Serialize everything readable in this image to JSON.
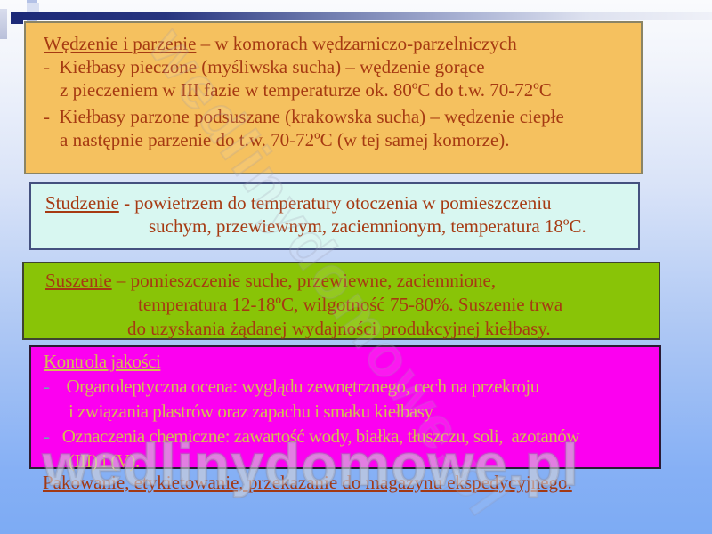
{
  "colors": {
    "background_bottom": "#7dabf4",
    "bar_navy": "#1c2a78",
    "box_smoking_bg": "#f5c15f",
    "box_cooling_bg": "#d8f7f1",
    "box_drying_bg": "#89c407",
    "box_quality_bg": "#fc00f0",
    "text_brick": "#a63a12",
    "text_khaki": "#d2be52"
  },
  "watermark": {
    "text": "wedlinydomowe.pl"
  },
  "boxes": {
    "smoking": {
      "title": "Wędzenie i parzenie",
      "title_suffix": " – w komorach wędzarniczo-parzelniczych",
      "line2": "-  Kiełbasy pieczone (myśliwska sucha) – wędzenie gorące",
      "line3": "z pieczeniem w III fazie w temperaturze ok. 80ºC do t.w. 70-72ºC",
      "line4": "-  Kiełbasy parzone podsuszane (krakowska sucha) – wędzenie ciepłe",
      "line5": "a następnie parzenie do t.w. 70-72ºC (w tej samej komorze)."
    },
    "cooling": {
      "title": "Studzenie",
      "title_suffix": " - powietrzem do temperatury otoczenia w pomieszczeniu",
      "line2": "suchym, przewiewnym, zaciemnionym, temperatura 18ºC."
    },
    "drying": {
      "title": "Suszenie",
      "title_suffix": " – pomieszczenie suche, przewiewne, zaciemnione,",
      "line2": "temperatura 12-18ºC, wilgotność 75-80%. Suszenie trwa",
      "line3": "do uzyskania żądanej wydajności produkcyjnej kiełbasy."
    },
    "quality": {
      "title": "Kontrola jakości",
      "line2": "-    Organoleptyczna ocena: wyglądu zewnętrznego, cech na przekroju",
      "line3": "i związania plastrów oraz zapachu i smaku kiełbasy",
      "line4": "-   Oznaczenia chemiczne: zawartość wody, białka, tłuszczu, soli,  azotanów",
      "line5": "(III) i (V)."
    }
  },
  "footer_line": "Pakowanie, etykietowanie, przekazanie do magazynu ekspedycyjnego."
}
